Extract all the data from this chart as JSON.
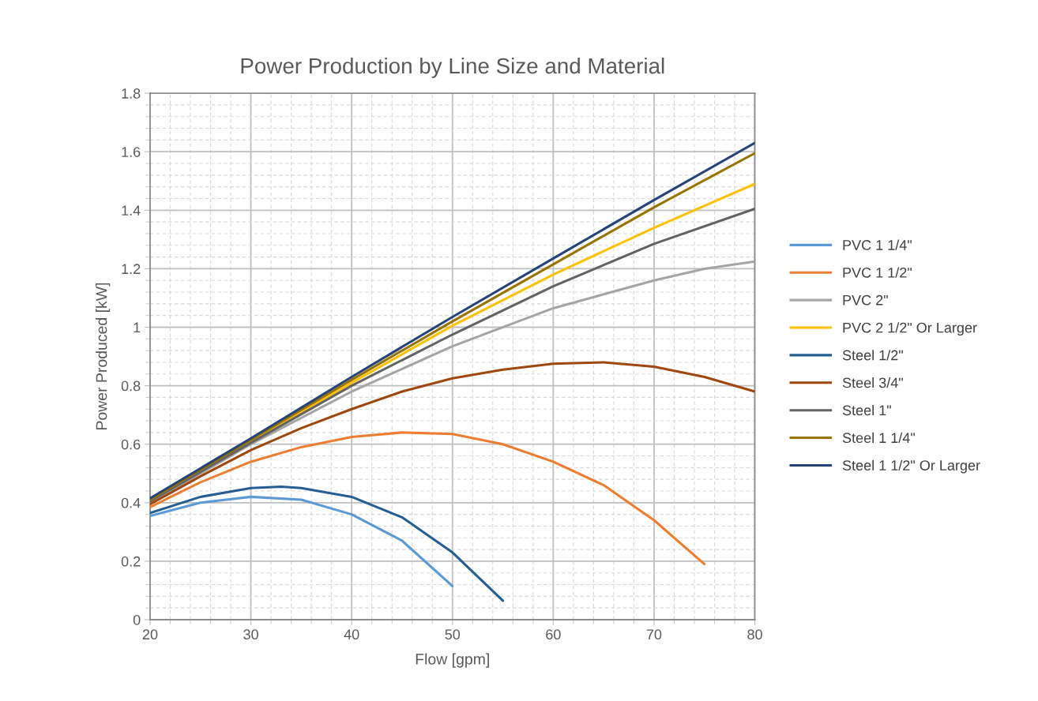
{
  "chart_data": {
    "type": "line",
    "title": "Power Production by Line Size and Material",
    "xlabel": "Flow [gpm]",
    "ylabel": "Power Produced [kW]",
    "xlim": [
      20,
      80
    ],
    "xticks": [
      20,
      30,
      40,
      50,
      60,
      70,
      80
    ],
    "ylim": [
      0,
      1.8
    ],
    "yticks": [
      0,
      0.2,
      0.4,
      0.6,
      0.8,
      1,
      1.2,
      1.4,
      1.6,
      1.8
    ],
    "grid": true,
    "legend": "right",
    "marker": "none",
    "line_style": "solid",
    "series": [
      {
        "name": "PVC 1 1/4\"",
        "color": "#5b9bd5",
        "x": [
          20,
          25,
          30,
          35,
          40,
          45,
          50
        ],
        "values": [
          0.355,
          0.4,
          0.42,
          0.41,
          0.36,
          0.27,
          0.115
        ]
      },
      {
        "name": "PVC 1 1/2\"",
        "color": "#ed7d31",
        "x": [
          20,
          25,
          30,
          35,
          40,
          45,
          50,
          55,
          60,
          65,
          70,
          75
        ],
        "values": [
          0.385,
          0.47,
          0.54,
          0.59,
          0.625,
          0.64,
          0.635,
          0.6,
          0.54,
          0.46,
          0.34,
          0.19
        ]
      },
      {
        "name": "PVC 2\"",
        "color": "#a5a5a5",
        "x": [
          20,
          30,
          40,
          50,
          60,
          70,
          75,
          80
        ],
        "values": [
          0.4,
          0.6,
          0.78,
          0.935,
          1.065,
          1.16,
          1.2,
          1.225
        ]
      },
      {
        "name": "PVC 2 1/2\" Or Larger",
        "color": "#ffc000",
        "x": [
          20,
          30,
          40,
          50,
          60,
          70,
          80
        ],
        "values": [
          0.41,
          0.61,
          0.81,
          1.005,
          1.18,
          1.34,
          1.49
        ]
      },
      {
        "name": "Steel 1/2\"",
        "color": "#255e91",
        "x": [
          20,
          25,
          30,
          33,
          35,
          40,
          45,
          50,
          55
        ],
        "values": [
          0.365,
          0.42,
          0.45,
          0.455,
          0.45,
          0.42,
          0.35,
          0.23,
          0.065
        ]
      },
      {
        "name": "Steel 3/4\"",
        "color": "#9e480e",
        "x": [
          20,
          25,
          30,
          35,
          40,
          45,
          50,
          55,
          60,
          65,
          70,
          75,
          80
        ],
        "values": [
          0.395,
          0.49,
          0.58,
          0.655,
          0.72,
          0.78,
          0.825,
          0.855,
          0.875,
          0.88,
          0.865,
          0.83,
          0.78
        ]
      },
      {
        "name": "Steel 1\"",
        "color": "#636363",
        "x": [
          20,
          30,
          40,
          50,
          60,
          70,
          80
        ],
        "values": [
          0.405,
          0.605,
          0.8,
          0.975,
          1.14,
          1.285,
          1.405
        ]
      },
      {
        "name": "Steel 1 1/4\"",
        "color": "#997300",
        "x": [
          20,
          30,
          40,
          50,
          60,
          70,
          80
        ],
        "values": [
          0.41,
          0.615,
          0.82,
          1.02,
          1.215,
          1.41,
          1.595
        ]
      },
      {
        "name": "Steel 1 1/2\" Or Larger",
        "color": "#264478",
        "x": [
          20,
          30,
          40,
          50,
          60,
          70,
          80
        ],
        "values": [
          0.415,
          0.62,
          0.83,
          1.035,
          1.235,
          1.435,
          1.63
        ]
      }
    ]
  }
}
